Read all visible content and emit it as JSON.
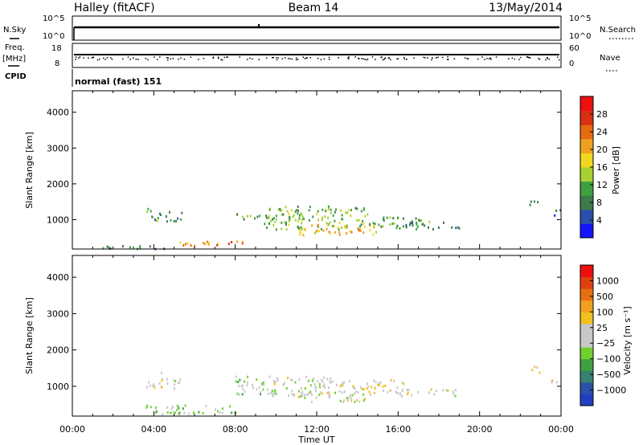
{
  "header": {
    "station": "Halley (fitACF)",
    "beam": "Beam 14",
    "date": "13/May/2014"
  },
  "summary": {
    "nsky_label": "N.Sky",
    "nsearch_label": "N.Search",
    "freq_label_line1": "Freq.",
    "freq_label_line2": "[MHz]",
    "nave_label": "Nave",
    "cpid_label": "CPID",
    "cpid_value": "normal (fast) 151",
    "nsky_ticks": [
      "10^5",
      "10^0"
    ],
    "nsearch_ticks": [
      "10^5",
      "10^0"
    ],
    "freq_ticks": [
      "18",
      "8"
    ],
    "nave_ticks": [
      "60",
      "0"
    ],
    "freq_value_mhz": 12,
    "nave_value": 30
  },
  "x_axis": {
    "label": "Time UT",
    "ticks": [
      "00:00",
      "04:00",
      "08:00",
      "12:00",
      "16:00",
      "20:00",
      "00:00"
    ]
  },
  "panels": {
    "power": {
      "ylabel": "Slant Range [km]",
      "yticks": [
        "4000",
        "3000",
        "2000",
        "1000"
      ],
      "cbar_label": "Power [dB]"
    },
    "velocity": {
      "ylabel": "Slant Range [km]",
      "yticks": [
        "4000",
        "3000",
        "2000",
        "1000"
      ],
      "cbar_label": "Velocity [m s⁻¹]"
    }
  },
  "colorbars": {
    "power": {
      "ticks": [
        "28",
        "24",
        "20",
        "16",
        "12",
        "8",
        "4"
      ],
      "colors": [
        "#1515ff",
        "#2b4faa",
        "#3e7a4a",
        "#3ea040",
        "#a8d030",
        "#f0d820",
        "#f0a020",
        "#e66a10",
        "#d83010",
        "#ee1010"
      ]
    },
    "velocity": {
      "ticks": [
        "1000",
        "500",
        "100",
        "25",
        "−25",
        "−100",
        "−500",
        "−1000"
      ],
      "colors": [
        "#2040c0",
        "#2a52a8",
        "#3a8070",
        "#40a040",
        "#70d030",
        "#c8c8c8",
        "#c8c8c8",
        "#f0c020",
        "#f0a020",
        "#e67010",
        "#e04010",
        "#ee1010"
      ]
    }
  },
  "chart_data": [
    {
      "type": "heatmap",
      "title": "Power [dB]",
      "xlabel": "Time UT",
      "ylabel": "Slant Range [km]",
      "xlim": [
        0,
        24
      ],
      "ylim": [
        180,
        4600
      ],
      "zlim": [
        0,
        30
      ],
      "regions": [
        {
          "t0": 3.6,
          "t1": 4.4,
          "r0": 1000,
          "r1": 1400,
          "v": 9
        },
        {
          "t0": 4.5,
          "t1": 5.4,
          "r0": 950,
          "r1": 1250,
          "v": 8
        },
        {
          "t0": 8.0,
          "t1": 10.0,
          "r0": 900,
          "r1": 1200,
          "v": 10
        },
        {
          "t0": 9.5,
          "t1": 14.5,
          "r0": 750,
          "r1": 1400,
          "v": 12
        },
        {
          "t0": 11.0,
          "t1": 15.0,
          "r0": 600,
          "r1": 900,
          "v": 18
        },
        {
          "t0": 14.5,
          "t1": 17.5,
          "r0": 800,
          "r1": 1100,
          "v": 10
        },
        {
          "t0": 16.0,
          "t1": 19.0,
          "r0": 750,
          "r1": 950,
          "v": 8
        },
        {
          "t0": 5.0,
          "t1": 7.5,
          "r0": 280,
          "r1": 420,
          "v": 20
        },
        {
          "t0": 7.0,
          "t1": 8.5,
          "r0": 300,
          "r1": 420,
          "v": 23
        },
        {
          "t0": 1.0,
          "t1": 5.0,
          "r0": 200,
          "r1": 300,
          "v": 8
        },
        {
          "t0": 22.4,
          "t1": 23.0,
          "r0": 1400,
          "r1": 1600,
          "v": 8
        },
        {
          "t0": 23.5,
          "t1": 24.0,
          "r0": 1100,
          "r1": 1300,
          "v": 6
        }
      ]
    },
    {
      "type": "heatmap",
      "title": "Velocity [m s⁻¹]",
      "xlabel": "Time UT",
      "ylabel": "Slant Range [km]",
      "xlim": [
        0,
        24
      ],
      "ylim": [
        180,
        4600
      ],
      "zlim": [
        -1000,
        1000
      ],
      "regions": [
        {
          "t0": 3.6,
          "t1": 4.4,
          "r0": 1000,
          "r1": 1400,
          "v": 150
        },
        {
          "t0": 4.5,
          "t1": 5.4,
          "r0": 950,
          "r1": 1250,
          "v": -80
        },
        {
          "t0": 8.0,
          "t1": 10.0,
          "r0": 800,
          "r1": 1300,
          "v": -200
        },
        {
          "t0": 9.5,
          "t1": 13.0,
          "r0": 750,
          "r1": 1300,
          "v": -60
        },
        {
          "t0": 11.0,
          "t1": 14.5,
          "r0": 600,
          "r1": 900,
          "v": 0
        },
        {
          "t0": 13.0,
          "t1": 16.5,
          "r0": 800,
          "r1": 1200,
          "v": 80
        },
        {
          "t0": 16.0,
          "t1": 19.0,
          "r0": 750,
          "r1": 950,
          "v": 60
        },
        {
          "t0": 3.5,
          "t1": 8.0,
          "r0": 250,
          "r1": 500,
          "v": -180
        },
        {
          "t0": 22.4,
          "t1": 23.0,
          "r0": 1400,
          "r1": 1600,
          "v": 300
        },
        {
          "t0": 23.5,
          "t1": 24.0,
          "r0": 1100,
          "r1": 1300,
          "v": 200
        }
      ]
    }
  ]
}
